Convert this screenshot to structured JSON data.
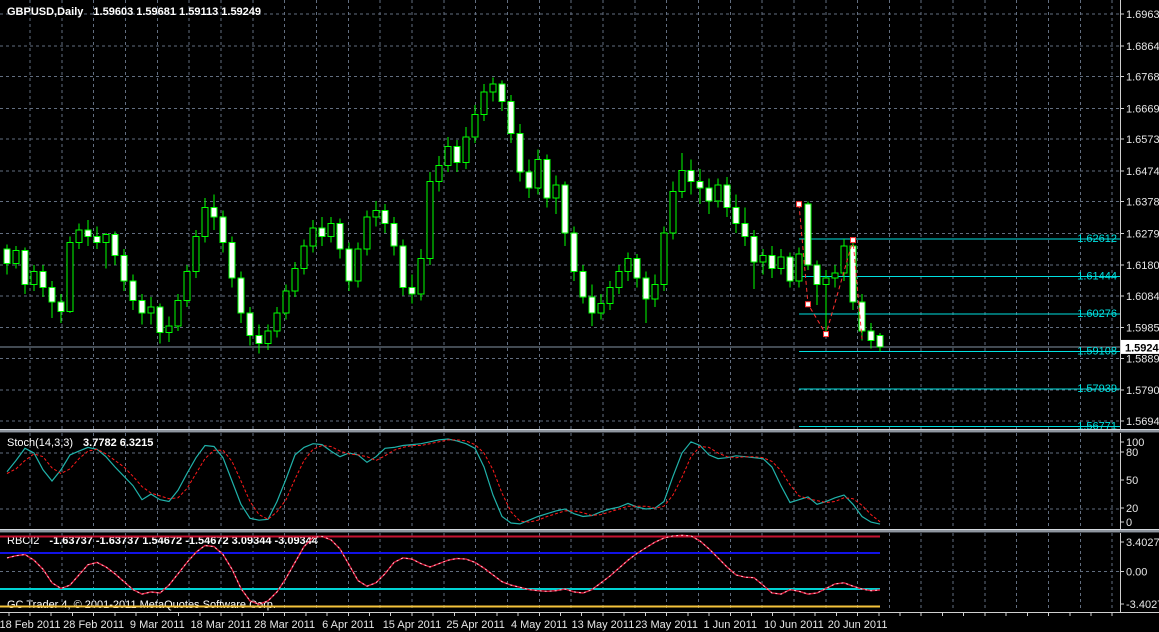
{
  "header": {
    "symbol_period": "GBPUSD,Daily",
    "ohlc_text": "1.59603 1.59681 1.59113 1.59249"
  },
  "copyright": "GC Trader 4, © 2001-2011 MetaQuotes Software Corp.",
  "colors": {
    "background": "#000000",
    "text": "#e6e6e6",
    "grid": "#626e80",
    "candle_outline": "#00ff00",
    "bull_body": "#000000",
    "bear_body": "#ffffff",
    "level_cyan": "#00e0e0",
    "bid_line": "#8494a5",
    "stoch_main": "#20b2aa",
    "stoch_signal": "#ff1a1a",
    "rbci_line": "#dc1638",
    "rbci_dash_overlay": "#ffc2cc",
    "band_red": "#c41230",
    "band_blue": "#1212e6",
    "band_cyan": "#00d2d2",
    "band_yellow": "#f5c33b",
    "price_tag_bg": "#ffffff",
    "price_tag_text": "#000000",
    "zigzag_red": "#ff3030"
  },
  "chart_data": {
    "type": "candlestick+indicators",
    "symbol": "GBPUSD",
    "timeframe": "Daily",
    "title_ohlc": {
      "open": 1.59603,
      "high": 1.59681,
      "low": 1.59113,
      "close": 1.59249
    },
    "bid_price": 1.59249,
    "current_price_label": "1.59249",
    "y_axis_ticks": [
      "1.69630",
      "1.68640",
      "1.67680",
      "1.66690",
      "1.65730",
      "1.64740",
      "1.63780",
      "1.62790",
      "1.61800",
      "1.60840",
      "1.59850",
      "1.58890",
      "1.57900",
      "1.56940"
    ],
    "x_axis_labels": [
      "18 Feb 2011",
      "28 Feb 2011",
      "9 Mar 2011",
      "18 Mar 2011",
      "28 Mar 2011",
      "6 Apr 2011",
      "15 Apr 2011",
      "25 Apr 2011",
      "4 May 2011",
      "13 May 2011",
      "23 May 2011",
      "1 Jun 2011",
      "10 Jun 2011",
      "20 Jun 2011"
    ],
    "horizontal_levels": [
      {
        "price": 1.62612,
        "label": "1.62612"
      },
      {
        "price": 1.61444,
        "label": "1.61444"
      },
      {
        "price": 1.60276,
        "label": "1.60276"
      },
      {
        "price": 1.59108,
        "label": "1.59108"
      },
      {
        "price": 1.57939,
        "label": "1.57939"
      },
      {
        "price": 1.56771,
        "label": "1.56771"
      }
    ],
    "levels_start_index": 88,
    "candles": [
      [
        1.623,
        1.6245,
        1.615,
        1.6185
      ],
      [
        1.6185,
        1.624,
        1.617,
        1.6225
      ],
      [
        1.6225,
        1.6235,
        1.609,
        1.612
      ],
      [
        1.612,
        1.618,
        1.61,
        1.616
      ],
      [
        1.616,
        1.618,
        1.608,
        1.611
      ],
      [
        1.611,
        1.613,
        1.6015,
        1.6065
      ],
      [
        1.6065,
        1.609,
        1.6,
        1.6035
      ],
      [
        1.6035,
        1.627,
        1.603,
        1.625
      ],
      [
        1.625,
        1.631,
        1.623,
        1.629
      ],
      [
        1.629,
        1.632,
        1.624,
        1.627
      ],
      [
        1.627,
        1.63,
        1.623,
        1.625
      ],
      [
        1.625,
        1.628,
        1.617,
        1.6275
      ],
      [
        1.6275,
        1.6285,
        1.618,
        1.621
      ],
      [
        1.621,
        1.623,
        1.61,
        1.613
      ],
      [
        1.613,
        1.615,
        1.604,
        1.607
      ],
      [
        1.607,
        1.609,
        1.5995,
        1.603
      ],
      [
        1.603,
        1.608,
        1.5995,
        1.605
      ],
      [
        1.605,
        1.606,
        1.5935,
        1.597
      ],
      [
        1.597,
        1.602,
        1.594,
        1.599
      ],
      [
        1.599,
        1.609,
        1.5975,
        1.607
      ],
      [
        1.607,
        1.618,
        1.605,
        1.616
      ],
      [
        1.616,
        1.629,
        1.614,
        1.627
      ],
      [
        1.627,
        1.639,
        1.625,
        1.636
      ],
      [
        1.636,
        1.64,
        1.629,
        1.633
      ],
      [
        1.633,
        1.635,
        1.622,
        1.625
      ],
      [
        1.625,
        1.627,
        1.611,
        1.614
      ],
      [
        1.614,
        1.616,
        1.6,
        1.603
      ],
      [
        1.603,
        1.605,
        1.593,
        1.596
      ],
      [
        1.596,
        1.5995,
        1.5905,
        1.5935
      ],
      [
        1.5935,
        1.5995,
        1.5915,
        1.5975
      ],
      [
        1.5975,
        1.605,
        1.5955,
        1.603
      ],
      [
        1.603,
        1.612,
        1.601,
        1.61
      ],
      [
        1.61,
        1.619,
        1.608,
        1.617
      ],
      [
        1.617,
        1.626,
        1.615,
        1.624
      ],
      [
        1.624,
        1.632,
        1.622,
        1.6295
      ],
      [
        1.6295,
        1.633,
        1.624,
        1.627
      ],
      [
        1.627,
        1.633,
        1.625,
        1.631
      ],
      [
        1.631,
        1.6325,
        1.62,
        1.623
      ],
      [
        1.623,
        1.625,
        1.61,
        1.613
      ],
      [
        1.613,
        1.625,
        1.611,
        1.623
      ],
      [
        1.623,
        1.635,
        1.621,
        1.633
      ],
      [
        1.633,
        1.638,
        1.63,
        1.635
      ],
      [
        1.635,
        1.637,
        1.628,
        1.631
      ],
      [
        1.631,
        1.633,
        1.621,
        1.624
      ],
      [
        1.624,
        1.626,
        1.6085,
        1.611
      ],
      [
        1.611,
        1.615,
        1.606,
        1.609
      ],
      [
        1.609,
        1.623,
        1.607,
        1.62
      ],
      [
        1.62,
        1.647,
        1.618,
        1.644
      ],
      [
        1.644,
        1.652,
        1.641,
        1.649
      ],
      [
        1.649,
        1.658,
        1.647,
        1.655
      ],
      [
        1.655,
        1.657,
        1.647,
        1.65
      ],
      [
        1.65,
        1.661,
        1.648,
        1.658
      ],
      [
        1.658,
        1.668,
        1.656,
        1.665
      ],
      [
        1.665,
        1.6745,
        1.663,
        1.672
      ],
      [
        1.672,
        1.6765,
        1.669,
        1.6745
      ],
      [
        1.6745,
        1.6755,
        1.666,
        1.669
      ],
      [
        1.669,
        1.671,
        1.656,
        1.659
      ],
      [
        1.659,
        1.662,
        1.644,
        1.647
      ],
      [
        1.647,
        1.651,
        1.639,
        1.642
      ],
      [
        1.642,
        1.654,
        1.64,
        1.651
      ],
      [
        1.651,
        1.6525,
        1.636,
        1.639
      ],
      [
        1.639,
        1.646,
        1.634,
        1.643
      ],
      [
        1.643,
        1.644,
        1.624,
        1.628
      ],
      [
        1.628,
        1.63,
        1.613,
        1.616
      ],
      [
        1.616,
        1.618,
        1.606,
        1.608
      ],
      [
        1.608,
        1.612,
        1.599,
        1.603
      ],
      [
        1.603,
        1.609,
        1.601,
        1.606
      ],
      [
        1.606,
        1.613,
        1.604,
        1.611
      ],
      [
        1.611,
        1.618,
        1.609,
        1.616
      ],
      [
        1.616,
        1.622,
        1.613,
        1.62
      ],
      [
        1.62,
        1.6215,
        1.611,
        1.614
      ],
      [
        1.614,
        1.616,
        1.6,
        1.6075
      ],
      [
        1.6075,
        1.615,
        1.605,
        1.612
      ],
      [
        1.612,
        1.63,
        1.61,
        1.628
      ],
      [
        1.628,
        1.644,
        1.626,
        1.641
      ],
      [
        1.641,
        1.653,
        1.639,
        1.6475
      ],
      [
        1.6475,
        1.651,
        1.64,
        1.644
      ],
      [
        1.644,
        1.648,
        1.637,
        1.642
      ],
      [
        1.642,
        1.645,
        1.634,
        1.638
      ],
      [
        1.638,
        1.645,
        1.636,
        1.643
      ],
      [
        1.643,
        1.6455,
        1.633,
        1.636
      ],
      [
        1.636,
        1.64,
        1.628,
        1.631
      ],
      [
        1.631,
        1.636,
        1.624,
        1.627
      ],
      [
        1.627,
        1.629,
        1.6105,
        1.619
      ],
      [
        1.619,
        1.623,
        1.615,
        1.621
      ],
      [
        1.621,
        1.624,
        1.614,
        1.617
      ],
      [
        1.617,
        1.623,
        1.615,
        1.6205
      ],
      [
        1.6205,
        1.622,
        1.611,
        1.613
      ],
      [
        1.613,
        1.6235,
        1.611,
        1.6215
      ],
      [
        1.637,
        1.6378,
        1.6165,
        1.618
      ],
      [
        1.618,
        1.6195,
        1.6055,
        1.612
      ],
      [
        1.612,
        1.6165,
        1.5965,
        1.614
      ],
      [
        1.614,
        1.618,
        1.611,
        1.6155
      ],
      [
        1.6155,
        1.6262,
        1.613,
        1.624
      ],
      [
        1.624,
        1.625,
        1.604,
        1.6065
      ],
      [
        1.6065,
        1.609,
        1.5945,
        1.5975
      ],
      [
        1.5975,
        1.6,
        1.592,
        1.5945
      ],
      [
        1.59603,
        1.59681,
        1.59113,
        1.59249
      ]
    ],
    "trade_zigzag": {
      "points": [
        [
          88,
          1.637
        ],
        [
          89,
          1.6058
        ],
        [
          91,
          1.5965
        ],
        [
          94,
          1.6258
        ],
        [
          95,
          1.595
        ]
      ],
      "marker_points": [
        [
          88,
          1.637
        ],
        [
          89,
          1.6058
        ],
        [
          91,
          1.5965
        ],
        [
          94,
          1.6258
        ]
      ]
    },
    "stochastic": {
      "name": "Stoch(14,3,3)",
      "value_main": "3.7782",
      "value_signal": "6.3215",
      "scale_labels": [
        "100",
        "80",
        "50",
        "20",
        "0"
      ],
      "dashed_levels": [
        80,
        20
      ],
      "main": [
        60,
        72,
        85,
        80,
        62,
        50,
        62,
        78,
        82,
        86,
        84,
        76,
        65,
        55,
        45,
        30,
        36,
        30,
        28,
        40,
        58,
        75,
        88,
        87,
        75,
        50,
        25,
        10,
        8,
        9,
        28,
        52,
        78,
        86,
        90,
        89,
        82,
        76,
        80,
        78,
        70,
        76,
        85,
        86,
        88,
        89,
        90,
        92,
        94,
        95,
        93,
        90,
        85,
        65,
        35,
        12,
        5,
        4,
        8,
        12,
        15,
        18,
        20,
        15,
        12,
        13,
        17,
        20,
        22,
        26,
        22,
        20,
        21,
        28,
        55,
        80,
        92,
        88,
        78,
        74,
        75,
        77,
        76,
        75,
        74,
        65,
        45,
        27,
        30,
        33,
        25,
        28,
        32,
        35,
        25,
        12,
        6,
        3.78
      ],
      "signal": [
        58,
        63,
        72,
        79,
        76,
        64,
        58,
        63,
        74,
        82,
        84,
        79,
        72,
        65,
        55,
        44,
        37,
        34,
        31,
        32,
        42,
        58,
        74,
        83,
        83,
        71,
        50,
        28,
        14,
        9,
        17,
        30,
        52,
        72,
        84,
        88,
        87,
        82,
        79,
        78,
        76,
        72,
        77,
        83,
        86,
        88,
        88,
        90,
        92,
        94,
        94,
        93,
        89,
        80,
        62,
        37,
        17,
        7,
        6,
        8,
        12,
        15,
        18,
        18,
        16,
        13,
        14,
        17,
        20,
        23,
        23,
        23,
        21,
        23,
        35,
        54,
        76,
        87,
        86,
        80,
        76,
        75,
        76,
        76,
        75,
        71,
        61,
        46,
        34,
        31,
        29,
        27,
        28,
        32,
        31,
        24,
        14,
        6.32
      ]
    },
    "rbci": {
      "name": "RBCI2",
      "values_text": "-1.63737 -1.63737 1.54672 -1.54672 3.09344 -3.09344",
      "scale_labels": [
        "3.40278",
        "0.00",
        "-3.40278"
      ],
      "scale_max": 3.40278,
      "bands": {
        "upper_red": 3.09344,
        "upper_blue": 1.63737,
        "lower_cyan": -1.54672,
        "lower_yellow": -3.09344
      },
      "series": [
        1.2,
        1.4,
        1.5,
        1.0,
        0.2,
        -1.0,
        -1.5,
        -1.2,
        -0.3,
        0.6,
        0.8,
        0.4,
        -0.2,
        -0.9,
        -1.6,
        -2.0,
        -1.8,
        -1.9,
        -1.2,
        -0.2,
        0.8,
        1.7,
        2.3,
        2.2,
        1.5,
        0.2,
        -1.5,
        -2.6,
        -2.9,
        -2.6,
        -1.8,
        -0.6,
        0.8,
        2.2,
        3.0,
        3.1,
        2.8,
        2.0,
        0.6,
        -0.8,
        -1.3,
        -1.0,
        -0.2,
        0.8,
        1.2,
        1.1,
        0.7,
        0.4,
        0.7,
        1.0,
        1.15,
        1.1,
        0.8,
        0.3,
        -0.3,
        -0.9,
        -1.2,
        -1.4,
        -1.6,
        -1.7,
        -1.75,
        -1.7,
        -1.55,
        -1.8,
        -1.9,
        -1.6,
        -1.0,
        -0.4,
        0.3,
        1.0,
        1.6,
        2.1,
        2.6,
        2.95,
        3.15,
        3.2,
        3.15,
        2.7,
        2.0,
        1.2,
        0.4,
        -0.3,
        -0.5,
        -0.55,
        -1.2,
        -1.9,
        -2.0,
        -1.6,
        -1.75,
        -2.0,
        -1.9,
        -1.5,
        -1.1,
        -1.0,
        -1.3,
        -1.55,
        -1.7,
        -1.637
      ]
    }
  }
}
